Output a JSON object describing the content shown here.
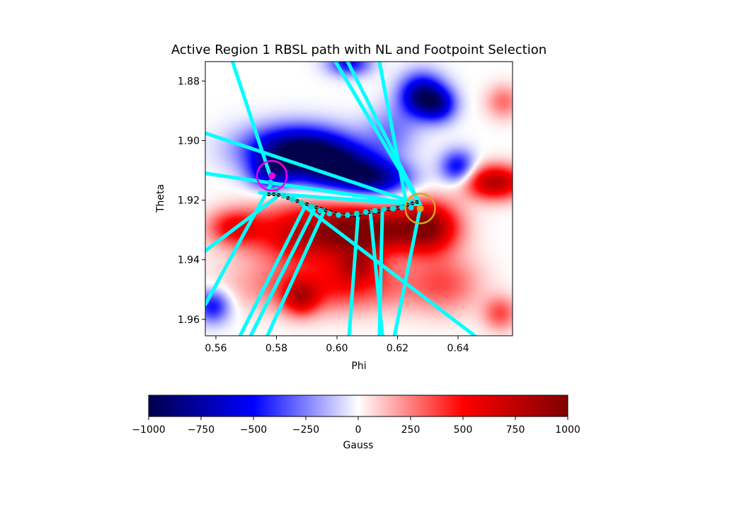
{
  "chart_data": {
    "type": "heatmap",
    "title": "Active Region 1 RBSL path with NL and Footpoint Selection",
    "xlabel": "Phi",
    "ylabel": "Theta",
    "xlim": [
      0.5565,
      0.658
    ],
    "ylim": [
      1.9655,
      1.8735
    ],
    "y_inverted": true,
    "grid": false,
    "x_ticks": [
      {
        "value": 0.56,
        "label": "0.56"
      },
      {
        "value": 0.58,
        "label": "0.58"
      },
      {
        "value": 0.6,
        "label": "0.60"
      },
      {
        "value": 0.62,
        "label": "0.62"
      },
      {
        "value": 0.64,
        "label": "0.64"
      }
    ],
    "y_ticks": [
      {
        "value": 1.88,
        "label": "1.88"
      },
      {
        "value": 1.9,
        "label": "1.90"
      },
      {
        "value": 1.92,
        "label": "1.92"
      },
      {
        "value": 1.94,
        "label": "1.94"
      },
      {
        "value": 1.96,
        "label": "1.96"
      }
    ],
    "colorbar": {
      "label": "Gauss",
      "range": [
        -1000,
        1000
      ],
      "colormap": "seismic",
      "colors": [
        "#00004c",
        "#0000ff",
        "#ffffff",
        "#ff0000",
        "#800000"
      ],
      "ticks": [
        {
          "value": -1000,
          "label": "−1000"
        },
        {
          "value": -750,
          "label": "−750"
        },
        {
          "value": -500,
          "label": "−500"
        },
        {
          "value": -250,
          "label": "−250"
        },
        {
          "value": 0,
          "label": "0"
        },
        {
          "value": 250,
          "label": "250"
        },
        {
          "value": 500,
          "label": "500"
        },
        {
          "value": 750,
          "label": "750"
        },
        {
          "value": 1000,
          "label": "1000"
        }
      ]
    },
    "field_blobs": [
      {
        "phi": 0.587,
        "theta": 1.903,
        "sx": 0.012,
        "sy": 0.0055,
        "gauss": -950
      },
      {
        "phi": 0.6,
        "theta": 1.909,
        "sx": 0.01,
        "sy": 0.005,
        "gauss": -800
      },
      {
        "phi": 0.613,
        "theta": 1.913,
        "sx": 0.008,
        "sy": 0.004,
        "gauss": -650
      },
      {
        "phi": 0.578,
        "theta": 1.911,
        "sx": 0.005,
        "sy": 0.004,
        "gauss": -500
      },
      {
        "phi": 0.628,
        "theta": 1.885,
        "sx": 0.005,
        "sy": 0.005,
        "gauss": -850
      },
      {
        "phi": 0.634,
        "theta": 1.888,
        "sx": 0.004,
        "sy": 0.004,
        "gauss": -500
      },
      {
        "phi": 0.64,
        "theta": 1.909,
        "sx": 0.004,
        "sy": 0.004,
        "gauss": -550
      },
      {
        "phi": 0.604,
        "theta": 1.874,
        "sx": 0.005,
        "sy": 0.003,
        "gauss": -500
      },
      {
        "phi": 0.559,
        "theta": 1.9555,
        "sx": 0.004,
        "sy": 0.004,
        "gauss": -500
      },
      {
        "phi": 0.618,
        "theta": 1.897,
        "sx": 0.006,
        "sy": 0.006,
        "gauss": -250
      },
      {
        "phi": 0.595,
        "theta": 1.931,
        "sx": 0.016,
        "sy": 0.007,
        "gauss": 850
      },
      {
        "phi": 0.63,
        "theta": 1.929,
        "sx": 0.007,
        "sy": 0.006,
        "gauss": 900
      },
      {
        "phi": 0.612,
        "theta": 1.93,
        "sx": 0.009,
        "sy": 0.005,
        "gauss": 600
      },
      {
        "phi": 0.652,
        "theta": 1.914,
        "sx": 0.007,
        "sy": 0.004,
        "gauss": 800
      },
      {
        "phi": 0.598,
        "theta": 1.949,
        "sx": 0.02,
        "sy": 0.006,
        "gauss": 450
      },
      {
        "phi": 0.588,
        "theta": 1.953,
        "sx": 0.004,
        "sy": 0.004,
        "gauss": 500
      },
      {
        "phi": 0.607,
        "theta": 1.942,
        "sx": 0.005,
        "sy": 0.004,
        "gauss": 450
      },
      {
        "phi": 0.636,
        "theta": 1.948,
        "sx": 0.008,
        "sy": 0.007,
        "gauss": 280
      },
      {
        "phi": 0.654,
        "theta": 1.958,
        "sx": 0.004,
        "sy": 0.004,
        "gauss": 350
      },
      {
        "phi": 0.655,
        "theta": 1.887,
        "sx": 0.004,
        "sy": 0.004,
        "gauss": 280
      },
      {
        "phi": 0.566,
        "theta": 1.929,
        "sx": 0.006,
        "sy": 0.004,
        "gauss": 450
      }
    ],
    "rbsl_path": {
      "phi": [
        0.577,
        0.58,
        0.583,
        0.586,
        0.589,
        0.592,
        0.595,
        0.598,
        0.601,
        0.604,
        0.607,
        0.61,
        0.613,
        0.616,
        0.619,
        0.622,
        0.625,
        0.627
      ],
      "theta": [
        1.918,
        1.918,
        1.919,
        1.92,
        1.921,
        1.922,
        1.923,
        1.924,
        1.925,
        1.925,
        1.925,
        1.924,
        1.924,
        1.923,
        1.923,
        1.922,
        1.921,
        1.9205
      ]
    },
    "nl_points": {
      "phi": [
        0.578,
        0.58,
        0.5825,
        0.5853,
        0.5883,
        0.5915,
        0.5945,
        0.5975,
        0.6005,
        0.6035,
        0.6065,
        0.6095,
        0.6125,
        0.6155,
        0.6185,
        0.6215,
        0.6245,
        0.6275
      ],
      "theta": [
        1.914,
        1.9165,
        1.9185,
        1.9198,
        1.921,
        1.9222,
        1.9235,
        1.9245,
        1.925,
        1.925,
        1.9245,
        1.924,
        1.9235,
        1.923,
        1.9228,
        1.9225,
        1.9225,
        1.9225
      ]
    },
    "field_lines": [
      {
        "phi": [
          0.6275,
          0.5565
        ],
        "theta": [
          1.9215,
          1.8975
        ]
      },
      {
        "phi": [
          0.6275,
          0.5565
        ],
        "theta": [
          1.9215,
          1.911
        ]
      },
      {
        "phi": [
          0.6275,
          0.6035
        ],
        "theta": [
          1.9215,
          1.8735
        ]
      },
      {
        "phi": [
          0.6275,
          0.5995
        ],
        "theta": [
          1.9215,
          1.8735
        ]
      },
      {
        "phi": [
          0.6275,
          0.5745
        ],
        "theta": [
          1.9215,
          1.9175
        ]
      },
      {
        "phi": [
          0.623,
          0.614
        ],
        "theta": [
          1.9215,
          1.8735
        ]
      },
      {
        "phi": [
          0.578,
          0.5655
        ],
        "theta": [
          1.912,
          1.8735
        ]
      },
      {
        "phi": [
          0.578,
          0.5565
        ],
        "theta": [
          1.915,
          1.955
        ]
      },
      {
        "phi": [
          0.58,
          0.5565
        ],
        "theta": [
          1.919,
          1.937
        ]
      },
      {
        "phi": [
          0.586,
          0.6455
        ],
        "theta": [
          1.9195,
          1.9655
        ]
      },
      {
        "phi": [
          0.59,
          0.568
        ],
        "theta": [
          1.921,
          1.9655
        ]
      },
      {
        "phi": [
          0.593,
          0.5715
        ],
        "theta": [
          1.922,
          1.9655
        ]
      },
      {
        "phi": [
          0.596,
          0.577
        ],
        "theta": [
          1.9232,
          1.9655
        ]
      },
      {
        "phi": [
          0.607,
          0.604
        ],
        "theta": [
          1.9245,
          1.9655
        ]
      },
      {
        "phi": [
          0.611,
          0.615
        ],
        "theta": [
          1.9238,
          1.9655
        ]
      },
      {
        "phi": [
          0.615,
          0.614
        ],
        "theta": [
          1.9232,
          1.9655
        ]
      },
      {
        "phi": [
          0.6275,
          0.619
        ],
        "theta": [
          1.9225,
          1.9655
        ]
      }
    ],
    "footpoints": [
      {
        "phi": 0.5785,
        "theta": 1.9118,
        "color": "#ee00ee"
      },
      {
        "phi": 0.6275,
        "theta": 1.9228,
        "color": "#daa520"
      }
    ]
  }
}
